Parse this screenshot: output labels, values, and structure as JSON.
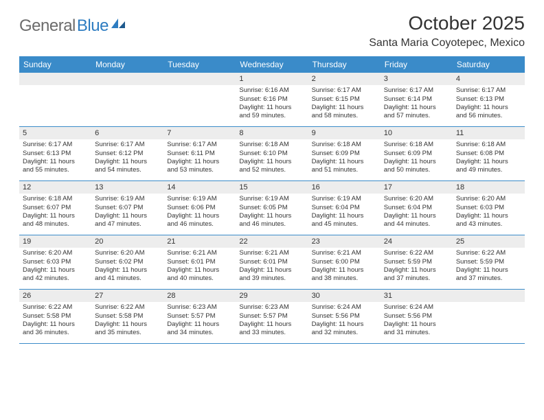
{
  "logo": {
    "text1": "General",
    "text2": "Blue"
  },
  "title": "October 2025",
  "location": "Santa Maria Coyotepec, Mexico",
  "colors": {
    "header_bg": "#3a8bc9",
    "header_fg": "#ffffff",
    "daynum_bg": "#ededed",
    "border": "#3a8bc9",
    "text": "#333333",
    "logo_gray": "#6b6b6b",
    "logo_blue": "#2d7cc1",
    "page_bg": "#ffffff"
  },
  "weekdays": [
    "Sunday",
    "Monday",
    "Tuesday",
    "Wednesday",
    "Thursday",
    "Friday",
    "Saturday"
  ],
  "weeks": [
    [
      {
        "n": "",
        "lines": [
          "",
          "",
          "",
          ""
        ]
      },
      {
        "n": "",
        "lines": [
          "",
          "",
          "",
          ""
        ]
      },
      {
        "n": "",
        "lines": [
          "",
          "",
          "",
          ""
        ]
      },
      {
        "n": "1",
        "lines": [
          "Sunrise: 6:16 AM",
          "Sunset: 6:16 PM",
          "Daylight: 11 hours",
          "and 59 minutes."
        ]
      },
      {
        "n": "2",
        "lines": [
          "Sunrise: 6:17 AM",
          "Sunset: 6:15 PM",
          "Daylight: 11 hours",
          "and 58 minutes."
        ]
      },
      {
        "n": "3",
        "lines": [
          "Sunrise: 6:17 AM",
          "Sunset: 6:14 PM",
          "Daylight: 11 hours",
          "and 57 minutes."
        ]
      },
      {
        "n": "4",
        "lines": [
          "Sunrise: 6:17 AM",
          "Sunset: 6:13 PM",
          "Daylight: 11 hours",
          "and 56 minutes."
        ]
      }
    ],
    [
      {
        "n": "5",
        "lines": [
          "Sunrise: 6:17 AM",
          "Sunset: 6:13 PM",
          "Daylight: 11 hours",
          "and 55 minutes."
        ]
      },
      {
        "n": "6",
        "lines": [
          "Sunrise: 6:17 AM",
          "Sunset: 6:12 PM",
          "Daylight: 11 hours",
          "and 54 minutes."
        ]
      },
      {
        "n": "7",
        "lines": [
          "Sunrise: 6:17 AM",
          "Sunset: 6:11 PM",
          "Daylight: 11 hours",
          "and 53 minutes."
        ]
      },
      {
        "n": "8",
        "lines": [
          "Sunrise: 6:18 AM",
          "Sunset: 6:10 PM",
          "Daylight: 11 hours",
          "and 52 minutes."
        ]
      },
      {
        "n": "9",
        "lines": [
          "Sunrise: 6:18 AM",
          "Sunset: 6:09 PM",
          "Daylight: 11 hours",
          "and 51 minutes."
        ]
      },
      {
        "n": "10",
        "lines": [
          "Sunrise: 6:18 AM",
          "Sunset: 6:09 PM",
          "Daylight: 11 hours",
          "and 50 minutes."
        ]
      },
      {
        "n": "11",
        "lines": [
          "Sunrise: 6:18 AM",
          "Sunset: 6:08 PM",
          "Daylight: 11 hours",
          "and 49 minutes."
        ]
      }
    ],
    [
      {
        "n": "12",
        "lines": [
          "Sunrise: 6:18 AM",
          "Sunset: 6:07 PM",
          "Daylight: 11 hours",
          "and 48 minutes."
        ]
      },
      {
        "n": "13",
        "lines": [
          "Sunrise: 6:19 AM",
          "Sunset: 6:07 PM",
          "Daylight: 11 hours",
          "and 47 minutes."
        ]
      },
      {
        "n": "14",
        "lines": [
          "Sunrise: 6:19 AM",
          "Sunset: 6:06 PM",
          "Daylight: 11 hours",
          "and 46 minutes."
        ]
      },
      {
        "n": "15",
        "lines": [
          "Sunrise: 6:19 AM",
          "Sunset: 6:05 PM",
          "Daylight: 11 hours",
          "and 46 minutes."
        ]
      },
      {
        "n": "16",
        "lines": [
          "Sunrise: 6:19 AM",
          "Sunset: 6:04 PM",
          "Daylight: 11 hours",
          "and 45 minutes."
        ]
      },
      {
        "n": "17",
        "lines": [
          "Sunrise: 6:20 AM",
          "Sunset: 6:04 PM",
          "Daylight: 11 hours",
          "and 44 minutes."
        ]
      },
      {
        "n": "18",
        "lines": [
          "Sunrise: 6:20 AM",
          "Sunset: 6:03 PM",
          "Daylight: 11 hours",
          "and 43 minutes."
        ]
      }
    ],
    [
      {
        "n": "19",
        "lines": [
          "Sunrise: 6:20 AM",
          "Sunset: 6:03 PM",
          "Daylight: 11 hours",
          "and 42 minutes."
        ]
      },
      {
        "n": "20",
        "lines": [
          "Sunrise: 6:20 AM",
          "Sunset: 6:02 PM",
          "Daylight: 11 hours",
          "and 41 minutes."
        ]
      },
      {
        "n": "21",
        "lines": [
          "Sunrise: 6:21 AM",
          "Sunset: 6:01 PM",
          "Daylight: 11 hours",
          "and 40 minutes."
        ]
      },
      {
        "n": "22",
        "lines": [
          "Sunrise: 6:21 AM",
          "Sunset: 6:01 PM",
          "Daylight: 11 hours",
          "and 39 minutes."
        ]
      },
      {
        "n": "23",
        "lines": [
          "Sunrise: 6:21 AM",
          "Sunset: 6:00 PM",
          "Daylight: 11 hours",
          "and 38 minutes."
        ]
      },
      {
        "n": "24",
        "lines": [
          "Sunrise: 6:22 AM",
          "Sunset: 5:59 PM",
          "Daylight: 11 hours",
          "and 37 minutes."
        ]
      },
      {
        "n": "25",
        "lines": [
          "Sunrise: 6:22 AM",
          "Sunset: 5:59 PM",
          "Daylight: 11 hours",
          "and 37 minutes."
        ]
      }
    ],
    [
      {
        "n": "26",
        "lines": [
          "Sunrise: 6:22 AM",
          "Sunset: 5:58 PM",
          "Daylight: 11 hours",
          "and 36 minutes."
        ]
      },
      {
        "n": "27",
        "lines": [
          "Sunrise: 6:22 AM",
          "Sunset: 5:58 PM",
          "Daylight: 11 hours",
          "and 35 minutes."
        ]
      },
      {
        "n": "28",
        "lines": [
          "Sunrise: 6:23 AM",
          "Sunset: 5:57 PM",
          "Daylight: 11 hours",
          "and 34 minutes."
        ]
      },
      {
        "n": "29",
        "lines": [
          "Sunrise: 6:23 AM",
          "Sunset: 5:57 PM",
          "Daylight: 11 hours",
          "and 33 minutes."
        ]
      },
      {
        "n": "30",
        "lines": [
          "Sunrise: 6:24 AM",
          "Sunset: 5:56 PM",
          "Daylight: 11 hours",
          "and 32 minutes."
        ]
      },
      {
        "n": "31",
        "lines": [
          "Sunrise: 6:24 AM",
          "Sunset: 5:56 PM",
          "Daylight: 11 hours",
          "and 31 minutes."
        ]
      },
      {
        "n": "",
        "lines": [
          "",
          "",
          "",
          ""
        ]
      }
    ]
  ]
}
